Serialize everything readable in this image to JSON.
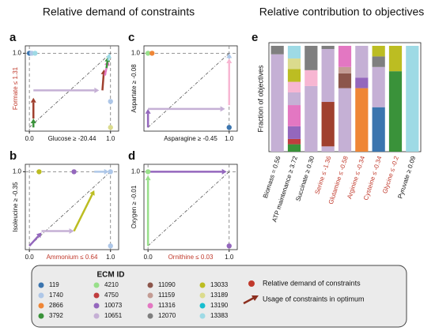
{
  "header": {
    "left_title": "Relative demand of constraints",
    "right_title": "Relative contribution to objectives"
  },
  "chart_data": [
    {
      "type": "scatter",
      "panel": "a",
      "xlabel": "Glucose ≥ -20.44",
      "ylabel": "Formate ≤ 1.31",
      "ylabel_color": "#c0392b",
      "xlim": [
        -0.05,
        1.1
      ],
      "ylim": [
        -0.05,
        1.1
      ],
      "xticks": [
        {
          "value": 0,
          "label": "0.0"
        },
        {
          "value": 1,
          "label": "1.0"
        }
      ],
      "yticks": [
        {
          "value": 1,
          "label": "1.0"
        }
      ],
      "points": [
        {
          "color": "#3b75af",
          "x": 0,
          "y": 1
        },
        {
          "color": "#aec7e8",
          "x": 0.03,
          "y": 1
        },
        {
          "color": "#9edae5",
          "x": 0.07,
          "y": 1
        },
        {
          "color": "#aec7e8",
          "x": 1,
          "y": 0.35
        },
        {
          "color": "#dbdb8d",
          "x": 1,
          "y": 0
        }
      ],
      "arrows": [
        {
          "color": "#3a923a",
          "x": [
            0.05,
            0.05
          ],
          "y": [
            0,
            0.12
          ]
        },
        {
          "color": "#a0402f",
          "x": [
            0.05,
            0.05
          ],
          "y": [
            0.12,
            0.4
          ]
        },
        {
          "color": "#c5b0d5",
          "x": [
            0.05,
            0.86
          ],
          "y": [
            0.5,
            0.5
          ]
        },
        {
          "color": "#a0402f",
          "x": [
            0.9,
            0.92
          ],
          "y": [
            0.5,
            0.78
          ]
        },
        {
          "color": "#e377c2",
          "x": [
            0.93,
            0.97
          ],
          "y": [
            0.7,
            0.9
          ]
        },
        {
          "color": "#3a923a",
          "x": [
            0.95,
            0.97
          ],
          "y": [
            0.8,
            0.95
          ]
        },
        {
          "color": "#9edae5",
          "x": [
            0.97,
            0.99
          ],
          "y": [
            0.9,
            1.0
          ]
        }
      ]
    },
    {
      "type": "scatter",
      "panel": "c",
      "xlabel": "Asparagine ≥ -0.45",
      "ylabel": "Aspartate ≥ -0.08",
      "xlim": [
        -0.05,
        1.1
      ],
      "ylim": [
        -0.05,
        1.1
      ],
      "xticks": [
        {
          "value": 1,
          "label": "1.0"
        }
      ],
      "yticks": [
        {
          "value": 1,
          "label": "1.0"
        }
      ],
      "points": [
        {
          "color": "#98df8a",
          "x": 0,
          "y": 1
        },
        {
          "color": "#ef8636",
          "x": 0.05,
          "y": 1
        },
        {
          "color": "#3b75af",
          "x": 1,
          "y": 0
        }
      ],
      "arrows": [
        {
          "color": "#9467bd",
          "x": [
            0,
            0
          ],
          "y": [
            0,
            0.25
          ]
        },
        {
          "color": "#c5b0d5",
          "x": [
            0,
            0.95
          ],
          "y": [
            0.25,
            0.25
          ]
        },
        {
          "color": "#f7b6d2",
          "x": [
            1,
            1
          ],
          "y": [
            0.3,
            0.93
          ]
        },
        {
          "color": "#aec7e8",
          "x": [
            1,
            1
          ],
          "y": [
            0.93,
            1
          ]
        }
      ]
    },
    {
      "type": "scatter",
      "panel": "b",
      "xlabel": "Ammonium ≤ 0.64",
      "xlabel_color": "#c0392b",
      "ylabel": "Isoleucine ≥ -0.35",
      "xlim": [
        -0.05,
        1.1
      ],
      "ylim": [
        -0.05,
        1.1
      ],
      "xticks": [
        {
          "value": 0,
          "label": "0.0"
        },
        {
          "value": 1,
          "label": "1.0"
        }
      ],
      "yticks": [
        {
          "value": 1,
          "label": "1.0"
        }
      ],
      "points": [
        {
          "color": "#bcbd22",
          "x": 0.12,
          "y": 1
        },
        {
          "color": "#9467bd",
          "x": 0.55,
          "y": 1
        },
        {
          "color": "#aec7e8",
          "x": 1,
          "y": 1
        },
        {
          "color": "#aec7e8",
          "x": 1,
          "y": 0
        }
      ],
      "arrows": [
        {
          "color": "#9467bd",
          "x": [
            0,
            0.15
          ],
          "y": [
            0,
            0.18
          ]
        },
        {
          "color": "#c5b0d5",
          "x": [
            0.15,
            0.55
          ],
          "y": [
            0.2,
            0.2
          ]
        },
        {
          "color": "#bcbd22",
          "x": [
            0.55,
            0.8
          ],
          "y": [
            0.2,
            0.75
          ]
        },
        {
          "color": "#aec7e8",
          "x": [
            0.8,
            0.98
          ],
          "y": [
            1,
            1
          ]
        }
      ]
    },
    {
      "type": "scatter",
      "panel": "d",
      "xlabel": "Ornithine ≤ 0.03",
      "xlabel_color": "#c0392b",
      "ylabel": "Oxygen ≥ -0.01",
      "xlim": [
        -0.05,
        1.1
      ],
      "ylim": [
        -0.05,
        1.1
      ],
      "xticks": [
        {
          "value": 0,
          "label": "0.0"
        },
        {
          "value": 1,
          "label": "1.0"
        }
      ],
      "yticks": [
        {
          "value": 1,
          "label": "1.0"
        }
      ],
      "points": [
        {
          "color": "#98df8a",
          "x": 0,
          "y": 1
        },
        {
          "color": "#9467bd",
          "x": 1,
          "y": 0
        }
      ],
      "arrows": [
        {
          "color": "#98df8a",
          "x": [
            0,
            0
          ],
          "y": [
            0,
            0.95
          ]
        },
        {
          "color": "#9467bd",
          "x": [
            0,
            0.97
          ],
          "y": [
            1,
            1
          ]
        }
      ]
    },
    {
      "type": "stacked_bar",
      "panel": "e",
      "ylabel": "Fraction of objectives",
      "ylim": [
        0,
        1
      ],
      "categories": [
        "Biomass = 0.56",
        "ATP maintenance ≥ 3.72",
        "Succinate ≥ 0.30",
        "Serine ≤ -1.36",
        "Glutamine ≤ -0.58",
        "Arginine ≤ -0.34",
        "Cysteine ≤ -0.34",
        "Glycine ≤ -0.2",
        "Pyruvate ≥ 0.09"
      ],
      "category_colors": [
        "#111111",
        "#111111",
        "#111111",
        "#c0392b",
        "#c0392b",
        "#c0392b",
        "#c0392b",
        "#c0392b",
        "#111111"
      ],
      "segments": [
        [
          {
            "color": "#c5b0d5",
            "value": 0.92
          },
          {
            "color": "#7f7f7f",
            "value": 0.08
          }
        ],
        [
          {
            "color": "#3a923a",
            "value": 0.07
          },
          {
            "color": "#c03d3e",
            "value": 0.05
          },
          {
            "color": "#9467bd",
            "value": 0.12
          },
          {
            "color": "#e377c2",
            "value": 0.2
          },
          {
            "color": "#c5b0d5",
            "value": 0.12
          },
          {
            "color": "#f7b6d2",
            "value": 0.1
          },
          {
            "color": "#bcbd22",
            "value": 0.12
          },
          {
            "color": "#dbdb8d",
            "value": 0.1
          },
          {
            "color": "#9edae5",
            "value": 0.12
          }
        ],
        [
          {
            "color": "#c5b0d5",
            "value": 0.62
          },
          {
            "color": "#f7b6d2",
            "value": 0.15
          },
          {
            "color": "#7f7f7f",
            "value": 0.23
          }
        ],
        [
          {
            "color": "#c5b0d5",
            "value": 0.05
          },
          {
            "color": "#a0402f",
            "value": 0.42
          },
          {
            "color": "#c5b0d5",
            "value": 0.5
          },
          {
            "color": "#7f7f7f",
            "value": 0.03
          }
        ],
        [
          {
            "color": "#c5b0d5",
            "value": 0.6
          },
          {
            "color": "#8c564b",
            "value": 0.14
          },
          {
            "color": "#c49c94",
            "value": 0.06
          },
          {
            "color": "#e377c2",
            "value": 0.2
          }
        ],
        [
          {
            "color": "#ef8636",
            "value": 0.6
          },
          {
            "color": "#9467bd",
            "value": 0.1
          },
          {
            "color": "#c5b0d5",
            "value": 0.3
          }
        ],
        [
          {
            "color": "#3b75af",
            "value": 0.42
          },
          {
            "color": "#c5b0d5",
            "value": 0.38
          },
          {
            "color": "#7f7f7f",
            "value": 0.1
          },
          {
            "color": "#bcbd22",
            "value": 0.1
          }
        ],
        [
          {
            "color": "#3a923a",
            "value": 0.76
          },
          {
            "color": "#bcbd22",
            "value": 0.24
          }
        ],
        [
          {
            "color": "#9edae5",
            "value": 1.0
          }
        ]
      ]
    }
  ],
  "legend": {
    "title": "ECM ID",
    "ids": [
      "119",
      "1740",
      "2866",
      "3792",
      "4210",
      "4750",
      "10073",
      "10651",
      "11090",
      "11159",
      "11316",
      "12070",
      "13033",
      "13189",
      "13190",
      "13383"
    ],
    "colors": [
      "#3b75af",
      "#aec7e8",
      "#ef8636",
      "#3a923a",
      "#98df8a",
      "#c03d3e",
      "#9467bd",
      "#c5b0d5",
      "#8c564b",
      "#c49c94",
      "#e377c2",
      "#7f7f7f",
      "#bcbd22",
      "#dbdb8d",
      "#17becf",
      "#9edae5"
    ],
    "demand_label": "Relative demand of constraints",
    "demand_color": "#c0392b",
    "usage_label": "Usage of constraints in optimum",
    "usage_color": "#8c2f1f"
  }
}
